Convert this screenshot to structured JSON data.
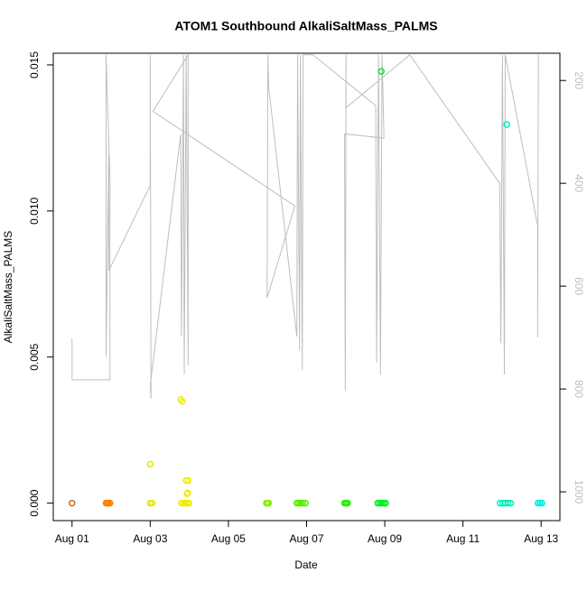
{
  "chart_data": {
    "type": "scatter",
    "title": "ATOM1 Southbound AlkaliSaltMass_PALMS",
    "x_label": "Date",
    "y_label": "AlkaliSaltMass_PALMS",
    "xlim": [
      0.52,
      13.48
    ],
    "xticks": [
      {
        "value": 1,
        "label": "Aug 01"
      },
      {
        "value": 3,
        "label": "Aug 03"
      },
      {
        "value": 5,
        "label": "Aug 05"
      },
      {
        "value": 7,
        "label": "Aug 07"
      },
      {
        "value": 9,
        "label": "Aug 09"
      },
      {
        "value": 11,
        "label": "Aug 11"
      },
      {
        "value": 13,
        "label": "Aug 13"
      }
    ],
    "ylim": [
      -0.0006,
      0.0154
    ],
    "yticks": [
      {
        "value": 0,
        "label": "0.000"
      },
      {
        "value": 0.005,
        "label": "0.005"
      },
      {
        "value": 0.01,
        "label": "0.010"
      },
      {
        "value": 0.015,
        "label": "0.015"
      }
    ],
    "y2lim": [
      1056,
      147
    ],
    "y2ticks": [
      200,
      400,
      600,
      800,
      1000
    ],
    "series": [
      {
        "color": "#bebebe",
        "axis": "y2",
        "type": "line",
        "x": [
          1.0,
          1.0,
          1.97,
          1.97,
          1.87,
          1.87,
          1.94,
          1.94,
          3.0,
          3.0,
          3.02,
          3.0,
          3.78,
          3.8,
          3.85,
          3.87,
          3.92,
          3.97,
          3.97,
          3.07,
          6.7,
          5.99,
          6.01,
          6.03,
          6.75,
          6.77,
          6.82,
          6.84,
          6.89,
          6.91,
          7.16,
          8.77,
          8.79,
          8.84,
          8.89,
          8.93,
          8.98,
          7.97,
          7.99,
          8.01,
          8.01,
          9.64,
          11.94,
          11.97,
          12.01,
          12.06,
          12.08,
          12.91,
          12.91,
          12.93
        ],
        "values": [
          702,
          782,
          782,
          391,
          150,
          737,
          342,
          570,
          404,
          150,
          819,
          793,
          304,
          698,
          150,
          772,
          150,
          754,
          150,
          260,
          444,
          623,
          150,
          212,
          698,
          150,
          725,
          150,
          763,
          150,
          150,
          249,
          749,
          150,
          772,
          150,
          312,
          304,
          804,
          150,
          253,
          150,
          400,
          711,
          150,
          772,
          150,
          482,
          700,
          150
        ]
      },
      {
        "color": "#d2691e",
        "x": [
          1.0
        ],
        "values": [
          0
        ]
      },
      {
        "color": "#ff7f00",
        "x": [
          1.87,
          1.9,
          1.93,
          1.97
        ],
        "values": [
          0,
          0,
          0,
          0
        ]
      },
      {
        "color": "#e6e600",
        "x": [
          3.0,
          3.05,
          3.0
        ],
        "values": [
          0,
          0,
          0.00133
        ]
      },
      {
        "color": "#eeee00",
        "x": [
          3.78,
          3.82,
          3.8,
          3.85,
          3.9,
          3.95,
          3.99,
          3.92,
          3.97,
          3.94,
          3.96
        ],
        "values": [
          0.00355,
          0.00348,
          0,
          0,
          0,
          0,
          0,
          0.00077,
          0.00077,
          0.00032,
          0.00035
        ]
      },
      {
        "color": "#88ee00",
        "x": [
          5.97,
          6.0,
          6.03
        ],
        "values": [
          0,
          0,
          0
        ]
      },
      {
        "color": "#55ee00",
        "x": [
          6.75,
          6.8,
          6.85,
          6.9,
          6.97
        ],
        "values": [
          0,
          0,
          0,
          0,
          0
        ]
      },
      {
        "color": "#22ee00",
        "x": [
          7.97,
          8.01,
          8.05
        ],
        "values": [
          0,
          0,
          0
        ]
      },
      {
        "color": "#00ee22",
        "x": [
          8.82,
          8.87,
          8.92,
          8.97,
          9.02,
          8.91
        ],
        "values": [
          0,
          0,
          0,
          0,
          0,
          0.01478
        ]
      },
      {
        "color": "#00eebb",
        "x": [
          11.95,
          12.02,
          12.08,
          12.15,
          12.22,
          12.12
        ],
        "values": [
          0,
          0,
          0,
          0,
          0,
          0.01296
        ]
      },
      {
        "color": "#00eedd",
        "x": [
          12.92,
          12.97,
          13.02
        ],
        "values": [
          0,
          0,
          0
        ]
      }
    ]
  }
}
